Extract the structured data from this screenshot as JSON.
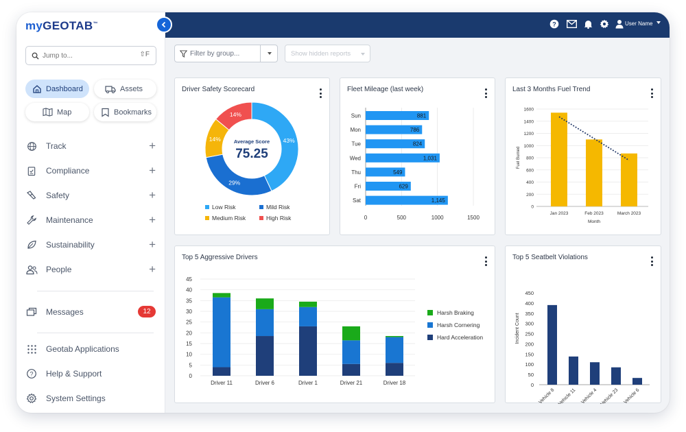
{
  "app": {
    "logo_prefix": "my",
    "logo_main": "GEOTAB",
    "logo_tm": "™"
  },
  "search": {
    "placeholder": "Jump to...",
    "shortcut": "⇧F"
  },
  "quick_nav": [
    {
      "label": "Dashboard",
      "icon": "home-icon",
      "active": true
    },
    {
      "label": "Assets",
      "icon": "truck-icon",
      "active": false
    },
    {
      "label": "Map",
      "icon": "map-icon",
      "active": false
    },
    {
      "label": "Bookmarks",
      "icon": "bookmark-icon",
      "active": false
    }
  ],
  "nav": [
    {
      "label": "Track",
      "icon": "globe-icon"
    },
    {
      "label": "Compliance",
      "icon": "clipboard-icon"
    },
    {
      "label": "Safety",
      "icon": "safety-icon"
    },
    {
      "label": "Maintenance",
      "icon": "wrench-icon"
    },
    {
      "label": "Sustainability",
      "icon": "leaf-icon"
    },
    {
      "label": "People",
      "icon": "people-icon"
    }
  ],
  "messages": {
    "label": "Messages",
    "count": "12"
  },
  "footer_nav": [
    {
      "label": "Geotab Applications",
      "icon": "grid-icon"
    },
    {
      "label": "Help & Support",
      "icon": "help-icon"
    },
    {
      "label": "System Settings",
      "icon": "settings-icon"
    }
  ],
  "topbar": {
    "user_name": "User Name"
  },
  "filters": {
    "group_placeholder": "Filter by group...",
    "hidden_reports": "Show hidden reports"
  },
  "cards": {
    "driver_safety": "Driver Safety Scorecard",
    "fleet_mileage": "Fleet Mileage (last week)",
    "fuel_trend": "Last 3 Months Fuel Trend",
    "aggressive": "Top 5 Aggressive Drivers",
    "seatbelt": "Top 5 Seatbelt Violations"
  },
  "colors": {
    "topbar": "#1a3a6e",
    "accent": "#1565d8",
    "low_risk": "#2ea8f5",
    "mild_risk": "#1a6fd1",
    "medium_risk": "#f5b50a",
    "high_risk": "#f0504f",
    "bar_blue": "#2196f3",
    "fuel_bar": "#f5b800",
    "harsh_braking": "#1aaa1a",
    "harsh_cornering": "#1976d2",
    "hard_acceleration": "#1f3f7a",
    "seatbelt_bar": "#1f3f7a"
  },
  "chart_data": [
    {
      "type": "pie",
      "title": "Driver Safety Scorecard",
      "center_label": "Average Score",
      "center_value": "75.25",
      "slices": [
        {
          "name": "Low Risk",
          "value": 43,
          "label": "43%"
        },
        {
          "name": "Mild Risk",
          "value": 29,
          "label": "29%"
        },
        {
          "name": "Medium Risk",
          "value": 14,
          "label": "14%"
        },
        {
          "name": "High Risk",
          "value": 14,
          "label": "14%"
        }
      ],
      "legend_placement": "bottom"
    },
    {
      "type": "bar",
      "orientation": "horizontal",
      "title": "Fleet Mileage (last week)",
      "categories": [
        "Sun",
        "Mon",
        "Tue",
        "Wed",
        "Thu",
        "Fri",
        "Sat"
      ],
      "values": [
        881,
        786,
        824,
        1031,
        549,
        629,
        1145
      ],
      "value_labels": [
        "881",
        "786",
        "824",
        "1,031",
        "549",
        "629",
        "1,145"
      ],
      "xlim": [
        0,
        1500
      ],
      "x_ticks": [
        "0",
        "500",
        "1000",
        "1500"
      ]
    },
    {
      "type": "bar",
      "title": "Last 3 Months Fuel Trend",
      "categories": [
        "Jan 2023",
        "Feb 2023",
        "March 2023"
      ],
      "values": [
        1540,
        1100,
        870
      ],
      "xlabel": "Month",
      "ylabel": "Fuel Burned",
      "ylim": [
        0,
        1600
      ],
      "y_ticks": [
        "0",
        "200",
        "400",
        "600",
        "800",
        "1000",
        "1200",
        "1400",
        "1600"
      ],
      "trendline": true
    },
    {
      "type": "bar",
      "stacked": true,
      "title": "Top 5 Aggressive Drivers",
      "categories": [
        "Driver 11",
        "Driver 6",
        "Driver 1",
        "Driver 21",
        "Driver 18"
      ],
      "series": [
        {
          "name": "Hard Acceleration",
          "values": [
            4,
            18.5,
            23,
            5.5,
            6
          ]
        },
        {
          "name": "Harsh Cornering",
          "values": [
            32.5,
            12.5,
            9,
            11,
            12
          ]
        },
        {
          "name": "Harsh Braking",
          "values": [
            2,
            5,
            2.5,
            6.5,
            0.5
          ]
        }
      ],
      "legend": [
        "Harsh Braking",
        "Harsh Cornering",
        "Hard Acceleration"
      ],
      "legend_placement": "right",
      "ylim": [
        0,
        45
      ],
      "y_ticks": [
        "0",
        "5",
        "10",
        "15",
        "20",
        "25",
        "30",
        "35",
        "40",
        "45"
      ]
    },
    {
      "type": "bar",
      "title": "Top 5 Seatbelt Violations",
      "categories": [
        "Vehicle 8",
        "Vehicle 11",
        "Vehicle 4",
        "Vehicle 23",
        "Vehicle 6"
      ],
      "values": [
        390,
        138,
        110,
        85,
        33
      ],
      "ylabel": "Incident Count",
      "ylim": [
        0,
        450
      ],
      "y_ticks": [
        "0",
        "50",
        "100",
        "150",
        "200",
        "250",
        "300",
        "350",
        "400",
        "450"
      ]
    }
  ]
}
